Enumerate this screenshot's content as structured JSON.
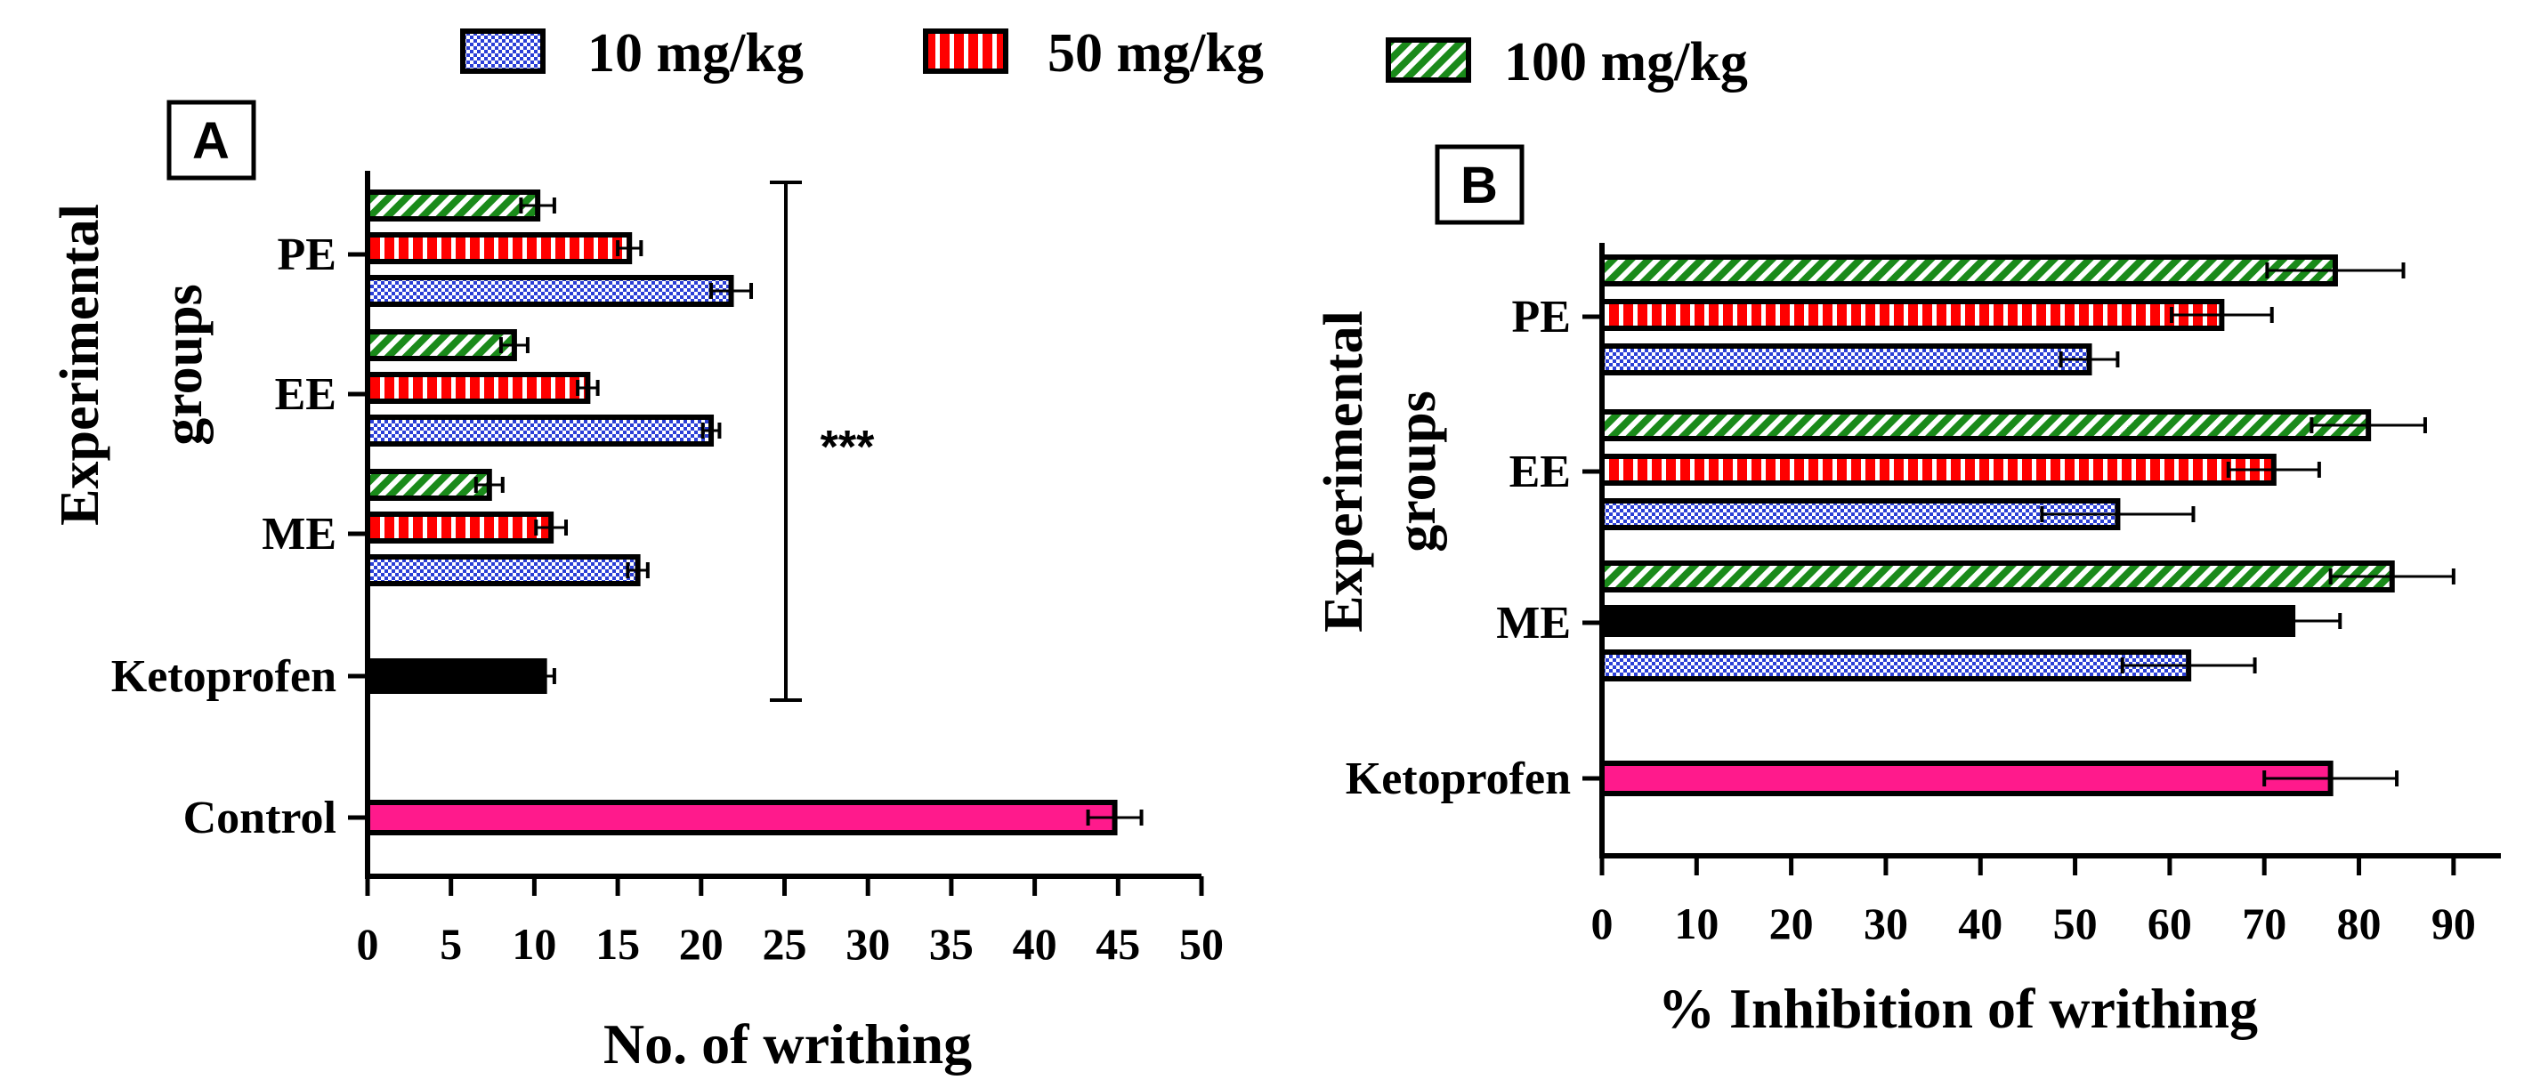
{
  "legend": {
    "items": [
      {
        "label": "10 mg/kg",
        "pattern": "dots"
      },
      {
        "label": "50 mg/kg",
        "pattern": "vstripes"
      },
      {
        "label": "100 mg/kg",
        "pattern": "diagonal"
      }
    ]
  },
  "colors": {
    "dose_10": "#2b3fd6",
    "dose_50": "#ff0000",
    "dose_100": "#1a8a1a",
    "ketoprofen_a": "#000000",
    "control": "#ff1a8c",
    "ketoprofen_b": "#ff1a8c",
    "me_50_b": "#000000"
  },
  "chart_data": [
    {
      "panel": "A",
      "type": "bar",
      "orientation": "horizontal",
      "panel_label": "A",
      "title": "",
      "xlabel": "No. of writhing",
      "ylabel_lines": [
        "Experimental",
        "groups"
      ],
      "xlim": [
        0,
        50
      ],
      "xticks": [
        "0",
        "5",
        "10",
        "15",
        "20",
        "25",
        "30",
        "35",
        "40",
        "45",
        "50"
      ],
      "categories": [
        "PE",
        "EE",
        "ME",
        "Ketoprofen",
        "Control"
      ],
      "groups": [
        {
          "category": "PE",
          "bars": [
            {
              "dose": "100 mg/kg",
              "value": 10.2,
              "error": 1.0
            },
            {
              "dose": "50 mg/kg",
              "value": 15.7,
              "error": 0.7
            },
            {
              "dose": "10 mg/kg",
              "value": 21.8,
              "error": 1.2
            }
          ]
        },
        {
          "category": "EE",
          "bars": [
            {
              "dose": "100 mg/kg",
              "value": 8.8,
              "error": 0.8
            },
            {
              "dose": "50 mg/kg",
              "value": 13.2,
              "error": 0.6
            },
            {
              "dose": "10 mg/kg",
              "value": 20.6,
              "error": 0.5
            }
          ]
        },
        {
          "category": "ME",
          "bars": [
            {
              "dose": "100 mg/kg",
              "value": 7.3,
              "error": 0.8
            },
            {
              "dose": "50 mg/kg",
              "value": 11.0,
              "error": 0.9
            },
            {
              "dose": "10 mg/kg",
              "value": 16.2,
              "error": 0.6
            }
          ]
        },
        {
          "category": "Ketoprofen",
          "bars": [
            {
              "dose": "",
              "value": 10.6,
              "error": 0.6
            }
          ]
        },
        {
          "category": "Control",
          "bars": [
            {
              "dose": "",
              "value": 44.8,
              "error": 1.6
            }
          ]
        }
      ],
      "annotation": "***"
    },
    {
      "panel": "B",
      "type": "bar",
      "orientation": "horizontal",
      "panel_label": "B",
      "title": "",
      "xlabel": "% Inhibition of writhing",
      "ylabel_lines": [
        "Experimental",
        "groups"
      ],
      "xlim": [
        0,
        95
      ],
      "xticks": [
        "0",
        "10",
        "20",
        "30",
        "40",
        "50",
        "60",
        "70",
        "80",
        "90"
      ],
      "categories": [
        "PE",
        "EE",
        "ME",
        "Ketoprofen"
      ],
      "groups": [
        {
          "category": "PE",
          "bars": [
            {
              "dose": "100 mg/kg",
              "value": 77.5,
              "error": 7.2
            },
            {
              "dose": "50 mg/kg",
              "value": 65.5,
              "error": 5.3
            },
            {
              "dose": "10 mg/kg",
              "value": 51.5,
              "error": 3.0
            }
          ]
        },
        {
          "category": "EE",
          "bars": [
            {
              "dose": "100 mg/kg",
              "value": 81.0,
              "error": 6.0
            },
            {
              "dose": "50 mg/kg",
              "value": 71.0,
              "error": 4.8
            },
            {
              "dose": "10 mg/kg",
              "value": 54.5,
              "error": 8.0
            }
          ]
        },
        {
          "category": "ME",
          "bars": [
            {
              "dose": "100 mg/kg",
              "value": 83.5,
              "error": 6.5
            },
            {
              "dose": "50 mg/kg",
              "value": 73.0,
              "error": 5.0
            },
            {
              "dose": "10 mg/kg",
              "value": 62.0,
              "error": 7.0
            }
          ]
        },
        {
          "category": "Ketoprofen",
          "bars": [
            {
              "dose": "",
              "value": 77.0,
              "error": 7.0
            }
          ]
        }
      ]
    }
  ]
}
